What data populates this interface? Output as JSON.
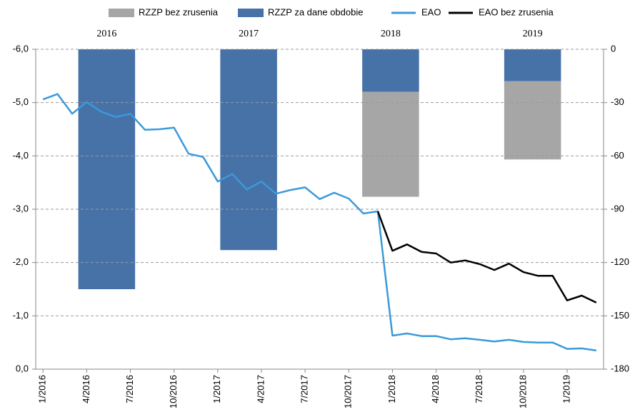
{
  "chart_data": [
    {
      "type": "bar",
      "categories": [
        "2016",
        "2017",
        "2018",
        "2019"
      ],
      "series": [
        {
          "name": "RZZP bez zrusenia",
          "color": "#a6a6a6",
          "axis": "y2",
          "values": [
            null,
            null,
            -59,
            -44
          ]
        },
        {
          "name": "RZZP za dane obdobie",
          "color": "#4672a8",
          "axis": "y2",
          "values": [
            -135,
            -113,
            -24,
            -18
          ]
        }
      ],
      "stacked": true,
      "y2lim": [
        -180,
        0
      ],
      "y2ticks": [
        0,
        -30,
        -60,
        -90,
        -120,
        -150,
        -180
      ]
    },
    {
      "type": "line",
      "categories": [
        "1/2016",
        null,
        null,
        "4/2016",
        null,
        null,
        "7/2016",
        null,
        null,
        "10/2016",
        null,
        null,
        "1/2017",
        null,
        null,
        "4/2017",
        null,
        null,
        "7/2017",
        null,
        null,
        "10/2017",
        null,
        null,
        "1/2018",
        null,
        null,
        "4/2018",
        null,
        null,
        "7/2018",
        null,
        null,
        "10/2018",
        null,
        null,
        "1/2019",
        null,
        null
      ],
      "series": [
        {
          "name": "EAO",
          "color": "#3a9ad9",
          "values": [
            -5.06,
            -5.16,
            -4.79,
            -5.01,
            -4.83,
            -4.73,
            -4.79,
            -4.49,
            -4.5,
            -4.53,
            -4.04,
            -3.98,
            -3.52,
            -3.66,
            -3.37,
            -3.52,
            -3.29,
            -3.36,
            -3.41,
            -3.19,
            -3.31,
            -3.2,
            -2.92,
            -2.96,
            -0.63,
            -0.67,
            -0.62,
            -0.62,
            -0.56,
            -0.58,
            -0.55,
            -0.52,
            -0.55,
            -0.51,
            -0.5,
            -0.5,
            -0.38,
            -0.39,
            -0.35
          ]
        },
        {
          "name": "EAO bez zrusenia",
          "color": "#000000",
          "values": [
            null,
            null,
            null,
            null,
            null,
            null,
            null,
            null,
            null,
            null,
            null,
            null,
            null,
            null,
            null,
            null,
            null,
            null,
            null,
            null,
            null,
            null,
            null,
            -2.96,
            -2.22,
            -2.34,
            -2.2,
            -2.17,
            -2.0,
            -2.04,
            -1.97,
            -1.86,
            -1.98,
            -1.82,
            -1.75,
            -1.75,
            -1.29,
            -1.38,
            -1.25
          ]
        }
      ],
      "ylim": [
        0,
        -6
      ],
      "yticks": [
        {
          "value": -6,
          "label": "-6,0"
        },
        {
          "value": -5,
          "label": "-5,0"
        },
        {
          "value": -4,
          "label": "-4,0"
        },
        {
          "value": -3,
          "label": "-3,0"
        },
        {
          "value": -2,
          "label": "-2,0"
        },
        {
          "value": -1,
          "label": "-1,0"
        },
        {
          "value": 0,
          "label": "0,0"
        }
      ],
      "grid": true
    }
  ]
}
